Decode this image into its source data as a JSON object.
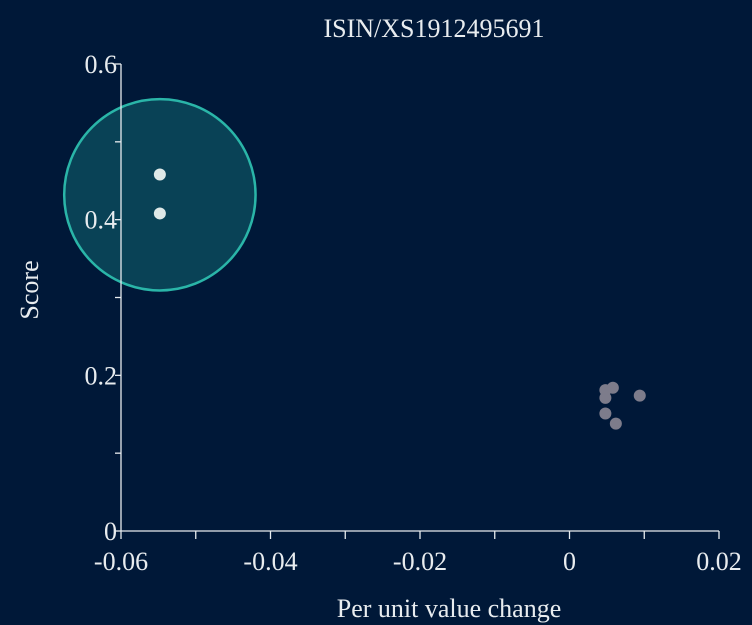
{
  "chart_data": {
    "type": "scatter",
    "title": "ISIN/XS1912495691",
    "xlabel": "Per unit value change",
    "ylabel": "Score",
    "xlim": [
      -0.06,
      0.02
    ],
    "ylim": [
      0,
      0.6
    ],
    "xticks": [
      -0.06,
      -0.04,
      -0.02,
      0,
      0.02
    ],
    "xtick_labels": [
      "-0.06",
      "-0.04",
      "-0.02",
      "0",
      "0.02"
    ],
    "yticks": [
      0,
      0.2,
      0.4,
      0.6
    ],
    "ytick_labels": [
      "0",
      "0.2",
      "0.4",
      "0.6"
    ],
    "grid": false,
    "series": [
      {
        "color": "#dfe9e8",
        "points": [
          {
            "x": -0.0548,
            "y": 0.458
          },
          {
            "x": -0.0548,
            "y": 0.408
          }
        ]
      },
      {
        "color": "#7d7c8b",
        "points": [
          {
            "x": 0.0048,
            "y": 0.181
          },
          {
            "x": 0.0058,
            "y": 0.184
          },
          {
            "x": 0.0048,
            "y": 0.171
          },
          {
            "x": 0.0094,
            "y": 0.174
          },
          {
            "x": 0.0048,
            "y": 0.151
          },
          {
            "x": 0.0062,
            "y": 0.138
          }
        ]
      }
    ],
    "highlight": {
      "cx": -0.0548,
      "cy": 0.432,
      "radius_x": 0.0128,
      "color": "#2ab5a8",
      "fill": "#0b4a5c"
    }
  }
}
